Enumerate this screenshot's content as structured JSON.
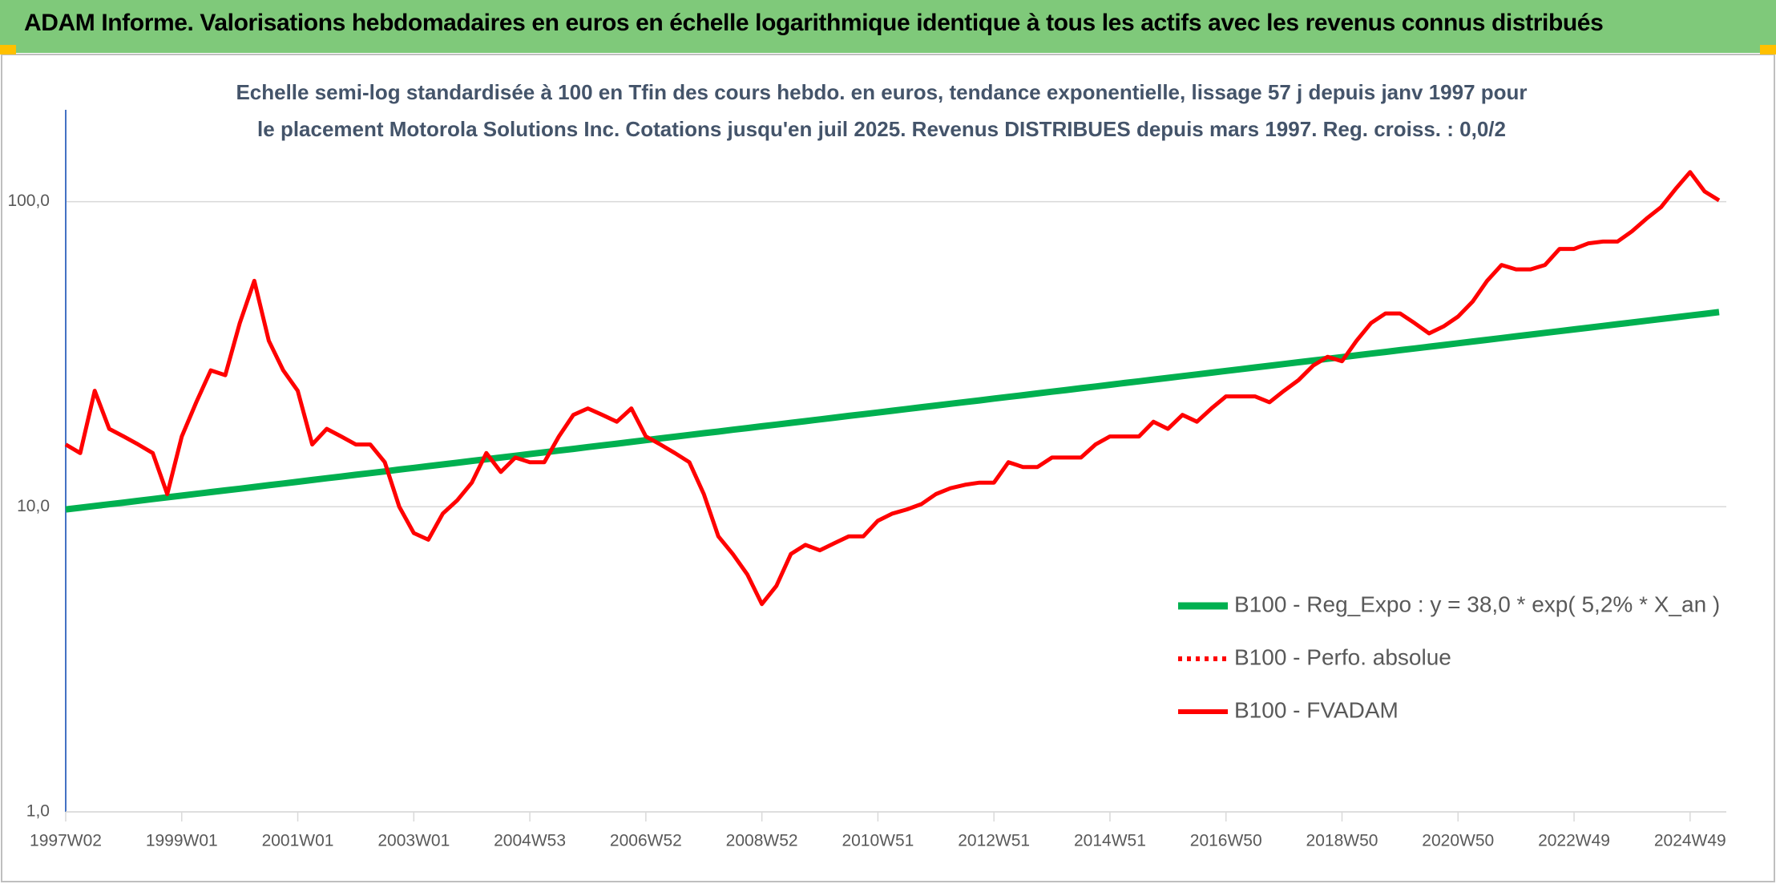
{
  "chart_data": {
    "type": "line",
    "title": "ADAM Informe. Valorisations hebdomadaires en euros en échelle logarithmique identique à tous les actifs avec les revenus connus distribués",
    "subtitle": "Echelle semi-log standardisée à 100 en Tfin des cours hebdo. en euros, tendance exponentielle, lissage 57 j depuis janv 1997 pour le placement Motorola Solutions Inc. Cotations jusqu'en juil 2025. Revenus DISTRIBUES depuis mars 1997. Reg. croiss. : 0,0/2",
    "categories": [
      "1997W02",
      null,
      null,
      null,
      null,
      null,
      null,
      null,
      "1999W01",
      null,
      null,
      null,
      null,
      null,
      null,
      null,
      "2001W01",
      null,
      null,
      null,
      null,
      null,
      null,
      null,
      "2003W01",
      null,
      null,
      null,
      null,
      null,
      null,
      null,
      "2004W53",
      null,
      null,
      null,
      null,
      null,
      null,
      null,
      "2006W52",
      null,
      null,
      null,
      null,
      null,
      null,
      null,
      "2008W52",
      null,
      null,
      null,
      null,
      null,
      null,
      null,
      "2010W51",
      null,
      null,
      null,
      null,
      null,
      null,
      null,
      "2012W51",
      null,
      null,
      null,
      null,
      null,
      null,
      null,
      "2014W51",
      null,
      null,
      null,
      null,
      null,
      null,
      null,
      "2016W50",
      null,
      null,
      null,
      null,
      null,
      null,
      null,
      "2018W50",
      null,
      null,
      null,
      null,
      null,
      null,
      null,
      "2020W50",
      null,
      null,
      null,
      null,
      null,
      null,
      null,
      "2022W49",
      null,
      null,
      null,
      null,
      null,
      null,
      null,
      "2024W49",
      null,
      null
    ],
    "series": [
      {
        "name": "B100 - Reg_Expo : y = 38,0 * exp( 5,2% *  X_an )",
        "color": "#00b050",
        "dash": "solid",
        "width": 8,
        "values": [
          9.8,
          9.93,
          10.06,
          10.19,
          10.32,
          10.46,
          10.6,
          10.74,
          10.88,
          11.02,
          11.17,
          11.31,
          11.46,
          11.61,
          11.77,
          11.92,
          12.08,
          12.24,
          12.4,
          12.56,
          12.73,
          12.89,
          13.06,
          13.24,
          13.41,
          13.59,
          13.76,
          13.94,
          14.13,
          14.31,
          14.5,
          14.69,
          14.89,
          15.08,
          15.28,
          15.48,
          15.69,
          15.89,
          16.1,
          16.31,
          16.53,
          16.75,
          16.97,
          17.19,
          17.42,
          17.64,
          17.88,
          18.11,
          18.35,
          18.59,
          18.84,
          19.08,
          19.33,
          19.59,
          19.85,
          20.11,
          20.37,
          20.64,
          20.91,
          21.19,
          21.47,
          21.75,
          22.03,
          22.32,
          22.62,
          22.91,
          23.21,
          23.52,
          23.83,
          24.14,
          24.46,
          24.78,
          25.11,
          25.44,
          25.77,
          26.11,
          26.45,
          26.8,
          27.15,
          27.51,
          27.87,
          28.24,
          28.61,
          28.98,
          29.36,
          29.75,
          30.14,
          30.54,
          30.94,
          31.35,
          31.76,
          32.18,
          32.6,
          33.03,
          33.46,
          33.9,
          34.35,
          34.8,
          35.26,
          35.72,
          36.19,
          36.67,
          37.15,
          37.64,
          38.13,
          38.63,
          39.14,
          39.66,
          40.18,
          40.71,
          41.24,
          41.78,
          42.33,
          42.89,
          43.45
        ]
      },
      {
        "name": "B100 - Perfo. absolue",
        "color": "#ff0000",
        "dash": "dotted",
        "width": 5,
        "values": [
          null,
          null,
          null,
          null,
          null,
          null,
          null,
          null,
          null,
          null,
          null,
          null,
          null,
          null,
          null,
          null,
          null,
          null,
          null,
          null,
          null,
          null,
          null,
          null,
          null,
          null,
          null,
          null,
          null,
          null,
          null,
          null,
          null,
          null,
          null,
          null,
          null,
          null,
          null,
          null,
          null,
          null,
          null,
          null,
          null,
          null,
          null,
          null,
          null,
          null,
          null,
          null,
          null,
          null,
          null,
          null,
          null,
          null,
          null,
          null,
          null,
          null,
          null,
          null,
          null,
          null,
          null,
          null,
          null,
          null,
          null,
          null,
          null,
          null,
          null,
          null,
          null,
          null,
          null,
          null,
          null,
          null,
          null,
          null,
          null,
          null,
          null,
          null,
          null,
          null,
          null,
          null,
          null,
          null,
          null,
          null,
          null,
          null,
          null,
          null,
          null,
          null,
          null,
          null,
          null,
          null,
          null,
          null,
          null,
          null,
          null,
          null,
          null,
          null,
          null
        ]
      },
      {
        "name": "B100 - FVADAM",
        "color": "#ff0000",
        "dash": "solid",
        "width": 5,
        "values": [
          16,
          15,
          24,
          18,
          17,
          16,
          15,
          11,
          17,
          22,
          28,
          27,
          40,
          55,
          35,
          28,
          24,
          16,
          18,
          17,
          16,
          16,
          14,
          10,
          8.2,
          7.8,
          9.5,
          10.5,
          12,
          15,
          13,
          14.5,
          14,
          14,
          17,
          20,
          21,
          20,
          19,
          21,
          17,
          16,
          15,
          14,
          11,
          8,
          7,
          6,
          4.8,
          5.5,
          7,
          7.5,
          7.2,
          7.6,
          8,
          8,
          9,
          9.5,
          9.8,
          10.2,
          11,
          11.5,
          11.8,
          12,
          12,
          14,
          13.5,
          13.5,
          14.5,
          14.5,
          14.5,
          16,
          17,
          17,
          17,
          19,
          18,
          20,
          19,
          21,
          23,
          23,
          23,
          22,
          24,
          26,
          29,
          31,
          30,
          35,
          40,
          43,
          43,
          40,
          37,
          39,
          42,
          47,
          55,
          62,
          60,
          60,
          62,
          70,
          70,
          73,
          74,
          74,
          80,
          88,
          96,
          110,
          125,
          108,
          101
        ]
      }
    ],
    "log_y": true,
    "ylim": [
      1,
      200
    ],
    "yticks": [
      {
        "value": 1,
        "label": "1,0"
      },
      {
        "value": 10,
        "label": "10,0"
      },
      {
        "value": 100,
        "label": "100,0"
      }
    ],
    "grid": true,
    "legend": "lower right"
  }
}
